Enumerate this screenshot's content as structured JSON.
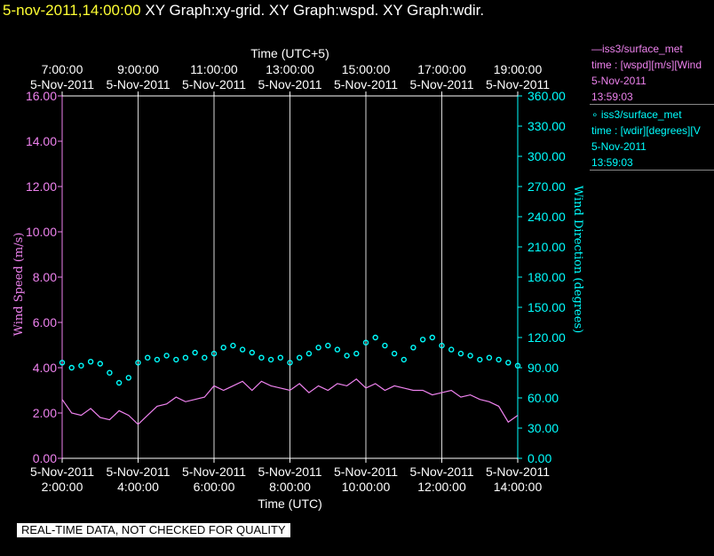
{
  "header": {
    "datetime": "5-nov-2011,14:00:00",
    "graphs": "XY Graph:xy-grid.  XY Graph:wspd.  XY Graph:wdir."
  },
  "legend": [
    {
      "line1": "—iss3/surface_met",
      "line2": "time : [wspd][m/s][Wind",
      "line3": "5-Nov-2011",
      "line4": "13:59:03",
      "color": "#ee82ee"
    },
    {
      "line1": "∘ iss3/surface_met",
      "line2": "time : [wdir][degrees][V",
      "line3": "5-Nov-2011",
      "line4": "13:59:03",
      "color": "#00ffff"
    }
  ],
  "footer": {
    "quality_note": "REAL-TIME DATA, NOT CHECKED FOR QUALITY"
  },
  "chart_data": {
    "type": "line",
    "title": "",
    "x_top_label": "Time (UTC+5)",
    "x_bottom_label": "Time (UTC)",
    "x_range_hours_utc": [
      2,
      14
    ],
    "x_bottom_ticks": [
      {
        "date": "5-Nov-2011",
        "time": "2:00:00"
      },
      {
        "date": "5-Nov-2011",
        "time": "4:00:00"
      },
      {
        "date": "5-Nov-2011",
        "time": "6:00:00"
      },
      {
        "date": "5-Nov-2011",
        "time": "8:00:00"
      },
      {
        "date": "5-Nov-2011",
        "time": "10:00:00"
      },
      {
        "date": "5-Nov-2011",
        "time": "12:00:00"
      },
      {
        "date": "5-Nov-2011",
        "time": "14:00:00"
      }
    ],
    "x_top_ticks": [
      {
        "time": "7:00:00",
        "date": "5-Nov-2011"
      },
      {
        "time": "9:00:00",
        "date": "5-Nov-2011"
      },
      {
        "time": "11:00:00",
        "date": "5-Nov-2011"
      },
      {
        "time": "13:00:00",
        "date": "5-Nov-2011"
      },
      {
        "time": "15:00:00",
        "date": "5-Nov-2011"
      },
      {
        "time": "17:00:00",
        "date": "5-Nov-2011"
      },
      {
        "time": "19:00:00",
        "date": "5-Nov-2011"
      }
    ],
    "y_left": {
      "label": "Wind Speed (m/s)",
      "range": [
        0,
        16
      ],
      "ticks": [
        "0.00",
        "2.00",
        "4.00",
        "6.00",
        "8.00",
        "10.00",
        "12.00",
        "14.00",
        "16.00"
      ],
      "color": "#ee82ee"
    },
    "y_right": {
      "label": "Wind Direction (degrees)",
      "range": [
        0,
        360
      ],
      "ticks": [
        "0.00",
        "30.00",
        "60.00",
        "90.00",
        "120.00",
        "150.00",
        "180.00",
        "210.00",
        "240.00",
        "270.00",
        "300.00",
        "330.00",
        "360.00"
      ],
      "color": "#00ffff"
    },
    "grid": "vertical",
    "series": [
      {
        "name": "iss3/surface_met wspd",
        "style": "line",
        "color": "#ee82ee",
        "x_hours_utc": [
          2.0,
          2.25,
          2.5,
          2.75,
          3.0,
          3.25,
          3.5,
          3.75,
          4.0,
          4.25,
          4.5,
          4.75,
          5.0,
          5.25,
          5.5,
          5.75,
          6.0,
          6.25,
          6.5,
          6.75,
          7.0,
          7.25,
          7.5,
          7.75,
          8.0,
          8.25,
          8.5,
          8.75,
          9.0,
          9.25,
          9.5,
          9.75,
          10.0,
          10.25,
          10.5,
          10.75,
          11.0,
          11.25,
          11.5,
          11.75,
          12.0,
          12.25,
          12.5,
          12.75,
          13.0,
          13.25,
          13.5,
          13.75,
          14.0
        ],
        "values": [
          2.6,
          2.0,
          1.9,
          2.2,
          1.8,
          1.7,
          2.1,
          1.9,
          1.5,
          1.9,
          2.3,
          2.4,
          2.7,
          2.5,
          2.6,
          2.7,
          3.2,
          3.0,
          3.2,
          3.4,
          3.0,
          3.4,
          3.2,
          3.1,
          3.0,
          3.3,
          2.9,
          3.2,
          3.0,
          3.3,
          3.2,
          3.5,
          3.1,
          3.3,
          3.0,
          3.2,
          3.1,
          3.0,
          3.0,
          2.8,
          2.9,
          3.0,
          2.7,
          2.8,
          2.6,
          2.5,
          2.3,
          1.6,
          1.9
        ]
      },
      {
        "name": "iss3/surface_met wdir",
        "style": "markers",
        "color": "#00ffff",
        "x_hours_utc": [
          2.0,
          2.25,
          2.5,
          2.75,
          3.0,
          3.25,
          3.5,
          3.75,
          4.0,
          4.25,
          4.5,
          4.75,
          5.0,
          5.25,
          5.5,
          5.75,
          6.0,
          6.25,
          6.5,
          6.75,
          7.0,
          7.25,
          7.5,
          7.75,
          8.0,
          8.25,
          8.5,
          8.75,
          9.0,
          9.25,
          9.5,
          9.75,
          10.0,
          10.25,
          10.5,
          10.75,
          11.0,
          11.25,
          11.5,
          11.75,
          12.0,
          12.25,
          12.5,
          12.75,
          13.0,
          13.25,
          13.5,
          13.75,
          14.0
        ],
        "values": [
          95,
          90,
          92,
          96,
          94,
          85,
          75,
          80,
          95,
          100,
          98,
          102,
          98,
          100,
          105,
          100,
          104,
          110,
          112,
          108,
          105,
          100,
          98,
          100,
          95,
          100,
          104,
          110,
          112,
          108,
          102,
          104,
          115,
          120,
          112,
          104,
          98,
          110,
          118,
          120,
          112,
          108,
          104,
          102,
          98,
          100,
          98,
          95,
          92
        ]
      }
    ]
  }
}
